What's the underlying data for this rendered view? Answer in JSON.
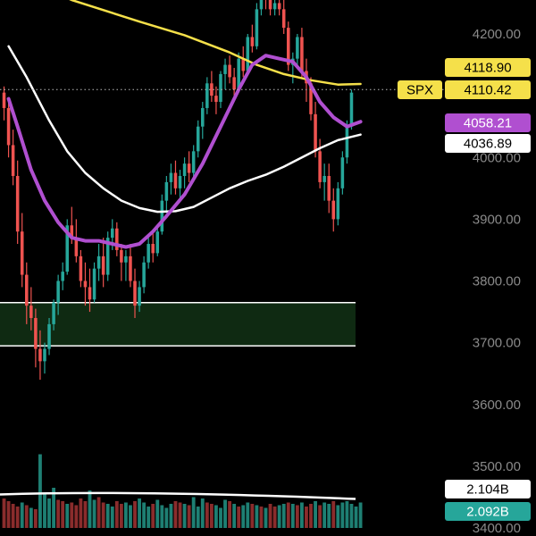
{
  "chart_data": {
    "type": "candlestick",
    "symbol": "SPX",
    "colors": {
      "up": "#26a69a",
      "down": "#ef5350",
      "ma_yellow": "#f5e04a",
      "ma_purple": "#b04fd0",
      "ma_white": "#ffffff",
      "zone_fill": "#0f2a12",
      "zone_border": "#ffffff",
      "axis_text": "#8a8a8a",
      "vol_up": "#1e7f73",
      "vol_down": "#8a2c2c"
    },
    "ylim": [
      3400,
      4270
    ],
    "y_ticks": [
      "4200.00",
      "4000.00",
      "3900.00",
      "3800.00",
      "3700.00",
      "3600.00",
      "3500.00",
      "3400.00"
    ],
    "y_tick_values": [
      4200,
      4000,
      3900,
      3800,
      3700,
      3600,
      3500,
      3400
    ],
    "last_price_line": 4110,
    "tags": [
      {
        "value": 4118.9,
        "label": "4118.90",
        "bg": "#f5e04a",
        "fg": "#000000"
      },
      {
        "value": 4110.42,
        "label": "4110.42",
        "bg": "#f5e04a",
        "fg": "#000000",
        "prefix": "SPX"
      },
      {
        "value": 4058.21,
        "label": "4058.21",
        "bg": "#b04fd0",
        "fg": "#ffffff"
      },
      {
        "value": 4036.89,
        "label": "4036.89",
        "bg": "#ffffff",
        "fg": "#000000"
      }
    ],
    "volume_tags": [
      {
        "label": "2.104B",
        "bg": "#ffffff",
        "fg": "#000000"
      },
      {
        "label": "2.092B",
        "bg": "#26a69a",
        "fg": "#ffffff"
      }
    ],
    "zone": {
      "low": 3695,
      "high": 3765
    },
    "candles": [
      [
        4105,
        4115,
        4060,
        4080
      ],
      [
        4080,
        4095,
        4000,
        4020
      ],
      [
        4020,
        4045,
        3955,
        3970
      ],
      [
        3970,
        3995,
        3860,
        3880
      ],
      [
        3880,
        3910,
        3790,
        3810
      ],
      [
        3810,
        3830,
        3730,
        3760
      ],
      [
        3760,
        3790,
        3720,
        3740
      ],
      [
        3740,
        3755,
        3660,
        3690
      ],
      [
        3690,
        3720,
        3640,
        3670
      ],
      [
        3670,
        3700,
        3650,
        3690
      ],
      [
        3690,
        3740,
        3680,
        3730
      ],
      [
        3730,
        3770,
        3720,
        3765
      ],
      [
        3765,
        3810,
        3745,
        3800
      ],
      [
        3800,
        3830,
        3785,
        3815
      ],
      [
        3815,
        3900,
        3810,
        3890
      ],
      [
        3890,
        3920,
        3860,
        3870
      ],
      [
        3870,
        3900,
        3830,
        3840
      ],
      [
        3840,
        3850,
        3790,
        3800
      ],
      [
        3800,
        3830,
        3760,
        3790
      ],
      [
        3790,
        3820,
        3750,
        3770
      ],
      [
        3770,
        3830,
        3765,
        3820
      ],
      [
        3820,
        3860,
        3800,
        3840
      ],
      [
        3840,
        3870,
        3790,
        3810
      ],
      [
        3810,
        3880,
        3800,
        3870
      ],
      [
        3870,
        3900,
        3850,
        3885
      ],
      [
        3885,
        3895,
        3840,
        3850
      ],
      [
        3850,
        3860,
        3800,
        3830
      ],
      [
        3830,
        3850,
        3800,
        3840
      ],
      [
        3840,
        3860,
        3790,
        3800
      ],
      [
        3800,
        3820,
        3740,
        3760
      ],
      [
        3760,
        3800,
        3750,
        3790
      ],
      [
        3790,
        3840,
        3780,
        3830
      ],
      [
        3830,
        3870,
        3820,
        3860
      ],
      [
        3860,
        3880,
        3830,
        3845
      ],
      [
        3845,
        3890,
        3840,
        3880
      ],
      [
        3880,
        3940,
        3875,
        3930
      ],
      [
        3930,
        3970,
        3910,
        3960
      ],
      [
        3960,
        3990,
        3940,
        3975
      ],
      [
        3975,
        3995,
        3940,
        3950
      ],
      [
        3950,
        3980,
        3930,
        3970
      ],
      [
        3970,
        4000,
        3950,
        3990
      ],
      [
        3990,
        4010,
        3960,
        3975
      ],
      [
        3975,
        4020,
        3965,
        4010
      ],
      [
        4010,
        4060,
        4000,
        4050
      ],
      [
        4050,
        4090,
        4030,
        4080
      ],
      [
        4080,
        4130,
        4070,
        4120
      ],
      [
        4120,
        4140,
        4090,
        4100
      ],
      [
        4100,
        4115,
        4070,
        4090
      ],
      [
        4090,
        4140,
        4080,
        4135
      ],
      [
        4135,
        4160,
        4110,
        4150
      ],
      [
        4150,
        4165,
        4120,
        4130
      ],
      [
        4130,
        4145,
        4100,
        4110
      ],
      [
        4110,
        4170,
        4105,
        4160
      ],
      [
        4160,
        4180,
        4130,
        4140
      ],
      [
        4140,
        4200,
        4135,
        4195
      ],
      [
        4195,
        4215,
        4170,
        4180
      ],
      [
        4180,
        4250,
        4175,
        4240
      ],
      [
        4240,
        4270,
        4230,
        4260
      ],
      [
        4260,
        4270,
        4240,
        4255
      ],
      [
        4255,
        4265,
        4230,
        4240
      ],
      [
        4240,
        4260,
        4230,
        4250
      ],
      [
        4250,
        4270,
        4230,
        4240
      ],
      [
        4240,
        4260,
        4200,
        4210
      ],
      [
        4210,
        4220,
        4140,
        4150
      ],
      [
        4150,
        4170,
        4120,
        4160
      ],
      [
        4160,
        4200,
        4150,
        4195
      ],
      [
        4195,
        4210,
        4130,
        4140
      ],
      [
        4140,
        4160,
        4090,
        4120
      ],
      [
        4120,
        4130,
        4060,
        4070
      ],
      [
        4070,
        4090,
        4000,
        4010
      ],
      [
        4010,
        4030,
        3950,
        3960
      ],
      [
        3960,
        3990,
        3930,
        3970
      ],
      [
        3970,
        3990,
        3910,
        3930
      ],
      [
        3930,
        3950,
        3880,
        3900
      ],
      [
        3900,
        3960,
        3890,
        3950
      ],
      [
        3950,
        4010,
        3940,
        4000
      ],
      [
        4000,
        4060,
        3990,
        4050
      ],
      [
        4050,
        4110,
        4045,
        4105
      ]
    ],
    "ma_yellow": [
      [
        1,
        4300
      ],
      [
        15,
        4255
      ],
      [
        30,
        4220
      ],
      [
        40,
        4198
      ],
      [
        50,
        4170
      ],
      [
        56,
        4150
      ],
      [
        62,
        4135
      ],
      [
        68,
        4125
      ],
      [
        74,
        4118
      ],
      [
        79,
        4119
      ]
    ],
    "ma_white": [
      [
        1,
        4180
      ],
      [
        5,
        4130
      ],
      [
        10,
        4060
      ],
      [
        14,
        4010
      ],
      [
        18,
        3975
      ],
      [
        22,
        3950
      ],
      [
        26,
        3930
      ],
      [
        30,
        3918
      ],
      [
        34,
        3912
      ],
      [
        38,
        3913
      ],
      [
        42,
        3920
      ],
      [
        46,
        3935
      ],
      [
        50,
        3950
      ],
      [
        54,
        3962
      ],
      [
        58,
        3972
      ],
      [
        62,
        3985
      ],
      [
        66,
        4000
      ],
      [
        70,
        4015
      ],
      [
        74,
        4028
      ],
      [
        79,
        4037
      ]
    ],
    "ma_purple": [
      [
        1,
        4095
      ],
      [
        3,
        4050
      ],
      [
        6,
        3980
      ],
      [
        9,
        3930
      ],
      [
        12,
        3895
      ],
      [
        15,
        3870
      ],
      [
        18,
        3865
      ],
      [
        21,
        3865
      ],
      [
        24,
        3860
      ],
      [
        27,
        3855
      ],
      [
        30,
        3860
      ],
      [
        33,
        3880
      ],
      [
        36,
        3905
      ],
      [
        40,
        3940
      ],
      [
        44,
        3990
      ],
      [
        48,
        4050
      ],
      [
        52,
        4110
      ],
      [
        55,
        4150
      ],
      [
        58,
        4165
      ],
      [
        61,
        4160
      ],
      [
        64,
        4155
      ],
      [
        67,
        4130
      ],
      [
        70,
        4090
      ],
      [
        73,
        4065
      ],
      [
        76,
        4050
      ],
      [
        79,
        4058
      ]
    ],
    "volume": [
      [
        0.22,
        0
      ],
      [
        0.2,
        0
      ],
      [
        0.18,
        0
      ],
      [
        0.16,
        0
      ],
      [
        0.19,
        1
      ],
      [
        0.17,
        0
      ],
      [
        0.15,
        1
      ],
      [
        0.14,
        0
      ],
      [
        0.55,
        1
      ],
      [
        0.25,
        1
      ],
      [
        0.22,
        1
      ],
      [
        0.3,
        1
      ],
      [
        0.21,
        0
      ],
      [
        0.2,
        0
      ],
      [
        0.18,
        1
      ],
      [
        0.19,
        0
      ],
      [
        0.17,
        0
      ],
      [
        0.22,
        0
      ],
      [
        0.2,
        0
      ],
      [
        0.28,
        1
      ],
      [
        0.21,
        1
      ],
      [
        0.23,
        0
      ],
      [
        0.19,
        0
      ],
      [
        0.18,
        1
      ],
      [
        0.16,
        1
      ],
      [
        0.2,
        0
      ],
      [
        0.18,
        0
      ],
      [
        0.19,
        1
      ],
      [
        0.17,
        1
      ],
      [
        0.2,
        0
      ],
      [
        0.22,
        1
      ],
      [
        0.19,
        1
      ],
      [
        0.16,
        1
      ],
      [
        0.18,
        0
      ],
      [
        0.21,
        1
      ],
      [
        0.17,
        1
      ],
      [
        0.15,
        1
      ],
      [
        0.18,
        1
      ],
      [
        0.2,
        0
      ],
      [
        0.19,
        0
      ],
      [
        0.18,
        1
      ],
      [
        0.17,
        0
      ],
      [
        0.23,
        1
      ],
      [
        0.16,
        1
      ],
      [
        0.22,
        1
      ],
      [
        0.19,
        0
      ],
      [
        0.18,
        0
      ],
      [
        0.17,
        1
      ],
      [
        0.15,
        1
      ],
      [
        0.21,
        1
      ],
      [
        0.2,
        0
      ],
      [
        0.18,
        1
      ],
      [
        0.16,
        0
      ],
      [
        0.17,
        1
      ],
      [
        0.19,
        1
      ],
      [
        0.18,
        0
      ],
      [
        0.17,
        1
      ],
      [
        0.16,
        0
      ],
      [
        0.15,
        1
      ],
      [
        0.18,
        0
      ],
      [
        0.16,
        0
      ],
      [
        0.17,
        1
      ],
      [
        0.18,
        1
      ],
      [
        0.19,
        0
      ],
      [
        0.18,
        1
      ],
      [
        0.17,
        0
      ],
      [
        0.19,
        1
      ],
      [
        0.16,
        0
      ],
      [
        0.18,
        0
      ],
      [
        0.2,
        1
      ],
      [
        0.17,
        0
      ],
      [
        0.19,
        1
      ],
      [
        0.18,
        1
      ],
      [
        0.2,
        0
      ],
      [
        0.17,
        1
      ],
      [
        0.19,
        1
      ],
      [
        0.2,
        1
      ],
      [
        0.18,
        1
      ],
      [
        0.16,
        1
      ],
      [
        0.19,
        1
      ]
    ],
    "volume_ma": 0.23,
    "grid": false
  }
}
